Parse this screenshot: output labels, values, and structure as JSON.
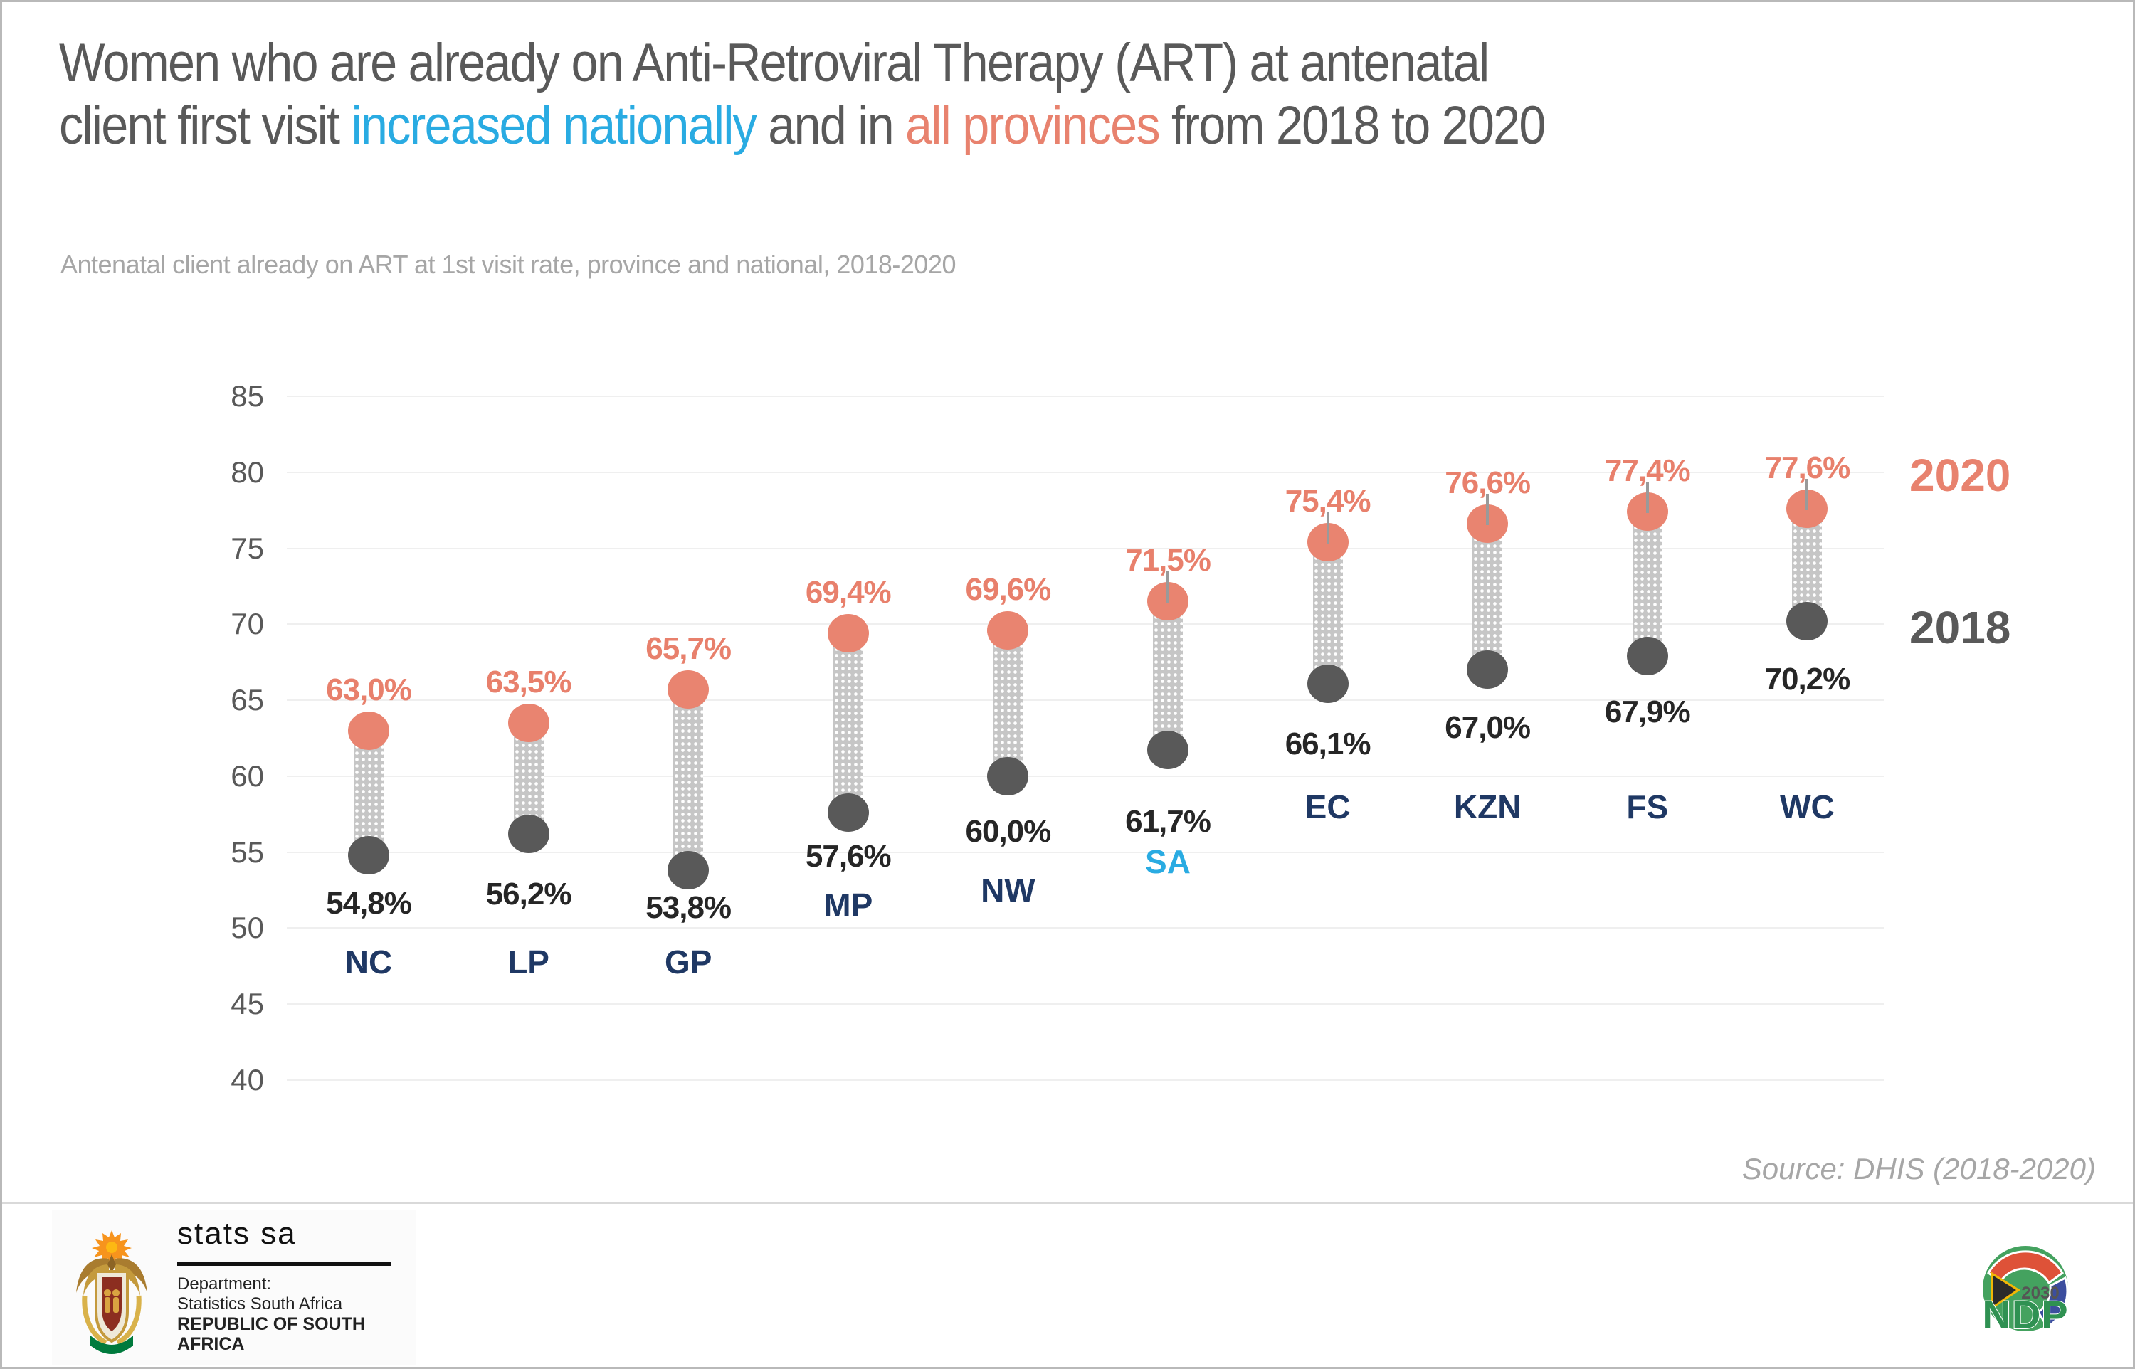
{
  "header": {
    "title_line1": "Women who are already on Anti-Retroviral Therapy (ART) at antenatal",
    "title_line2": [
      {
        "text": "client first visit "
      },
      {
        "text": "increased nationally"
      },
      {
        "text": " and in "
      },
      {
        "text": "all provinces"
      },
      {
        "text": " from 2018 to 2020"
      }
    ],
    "subtitle": "Antenatal client already on ART at 1st visit rate, province and national, 2018-2020"
  },
  "chart_data": {
    "type": "dumbbell",
    "title": "Antenatal client already on ART at 1st visit rate, province and national, 2018-2020",
    "categories": [
      "NC",
      "LP",
      "GP",
      "MP",
      "NW",
      "SA",
      "EC",
      "KZN",
      "FS",
      "WC"
    ],
    "series": [
      {
        "name": "2018",
        "color": "#595959",
        "values": [
          54.8,
          56.2,
          53.8,
          57.6,
          60.0,
          61.7,
          66.1,
          67.0,
          67.9,
          70.2
        ],
        "labels": [
          "54,8%",
          "56,2%",
          "53,8%",
          "57,6%",
          "60,0%",
          "61,7%",
          "66,1%",
          "67,0%",
          "67,9%",
          "70,2%"
        ]
      },
      {
        "name": "2020",
        "color": "#E8826E",
        "values": [
          63.0,
          63.5,
          65.7,
          69.4,
          69.6,
          71.5,
          75.4,
          76.6,
          77.4,
          77.6
        ],
        "labels": [
          "63,0%",
          "63,5%",
          "65,7%",
          "69,4%",
          "69,6%",
          "71,5%",
          "75,4%",
          "76,6%",
          "77,4%",
          "77,6%"
        ]
      }
    ],
    "ylim": [
      40,
      85
    ],
    "yticks": [
      85,
      80,
      75,
      70,
      65,
      60,
      55,
      50,
      45,
      40
    ],
    "grid": true,
    "legend": {
      "top_label": "2020",
      "bottom_label": "2018",
      "position": "right"
    },
    "highlight_category": "SA",
    "leader_tick_categories": [
      "SA",
      "EC",
      "KZN",
      "FS",
      "WC"
    ]
  },
  "source": {
    "text": "Source: DHIS (2018-2020)"
  },
  "footer": {
    "statssa": {
      "wordmark": "stats sa",
      "dept_line1": "Department:",
      "dept_line2": "Statistics South Africa",
      "dept_line3": "REPUBLIC OF SOUTH AFRICA"
    },
    "ndp": {
      "text": "NDP",
      "year": "2030"
    }
  },
  "colors": {
    "accent_2020": "#E8826E",
    "accent_2018": "#595959",
    "national_highlight": "#29ABE2",
    "province_label": "#1F3864",
    "title_gray": "#595959",
    "subtitle_gray": "#A6A6A6",
    "gridline": "#EFEFEF",
    "band_gray": "#C6C6C6"
  }
}
